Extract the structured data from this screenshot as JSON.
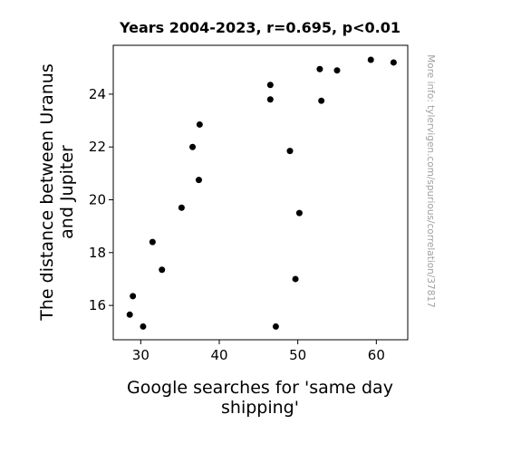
{
  "chart_data": {
    "type": "scatter",
    "title": "Years 2004-2023, r=0.695, p<0.01",
    "xlabel_lines": [
      "Google searches for 'same day",
      "shipping'"
    ],
    "ylabel_lines": [
      "The distance between Uranus",
      "and Jupiter"
    ],
    "xlim": [
      26.5,
      64
    ],
    "ylim": [
      14.7,
      25.85
    ],
    "x_ticks": [
      30,
      40,
      50,
      60
    ],
    "y_ticks": [
      16,
      18,
      20,
      22,
      24
    ],
    "grid": false,
    "legend": "none",
    "point_color": "#000000",
    "points": [
      {
        "x": 28.6,
        "y": 15.65
      },
      {
        "x": 29.0,
        "y": 16.35
      },
      {
        "x": 30.3,
        "y": 15.2
      },
      {
        "x": 31.5,
        "y": 18.4
      },
      {
        "x": 32.7,
        "y": 17.35
      },
      {
        "x": 35.2,
        "y": 19.7
      },
      {
        "x": 36.6,
        "y": 22.0
      },
      {
        "x": 37.4,
        "y": 20.75
      },
      {
        "x": 37.5,
        "y": 22.85
      },
      {
        "x": 46.5,
        "y": 24.35
      },
      {
        "x": 46.5,
        "y": 23.8
      },
      {
        "x": 47.2,
        "y": 15.2
      },
      {
        "x": 49.0,
        "y": 21.85
      },
      {
        "x": 49.7,
        "y": 17.0
      },
      {
        "x": 50.2,
        "y": 19.5
      },
      {
        "x": 52.8,
        "y": 24.95
      },
      {
        "x": 53.0,
        "y": 23.75
      },
      {
        "x": 55.0,
        "y": 24.9
      },
      {
        "x": 59.3,
        "y": 25.3
      },
      {
        "x": 62.2,
        "y": 25.2
      }
    ]
  },
  "watermark": "More info: tylervigen.com/spurious/correlation/37817"
}
